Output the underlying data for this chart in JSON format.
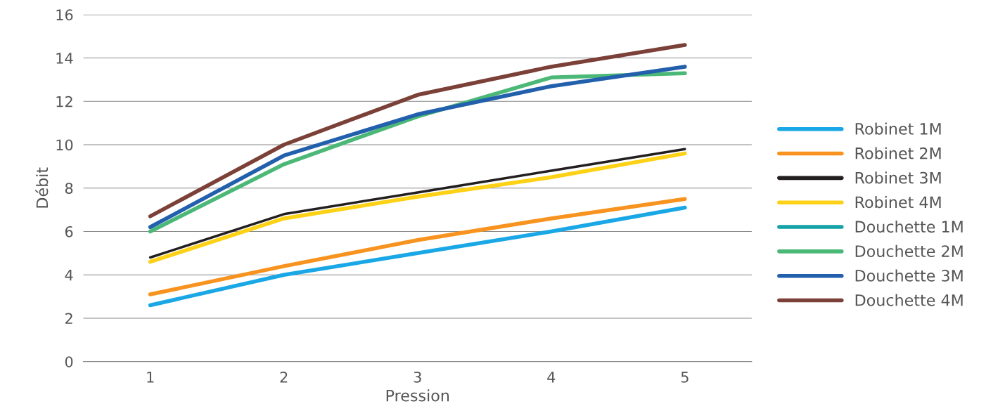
{
  "chart_data": {
    "type": "line",
    "xlabel": "Pression",
    "ylabel": "Débit",
    "x": [
      1,
      2,
      3,
      4,
      5
    ],
    "xlim": [
      0.5,
      5.5
    ],
    "xticks": [
      1,
      2,
      3,
      4,
      5
    ],
    "ylim": [
      0,
      16
    ],
    "yticks": [
      0,
      2,
      4,
      6,
      8,
      10,
      12,
      14,
      16
    ],
    "grid": "y",
    "legend": "right",
    "marker": "none",
    "line_style": "solid",
    "series": [
      {
        "name": "Robinet 1M",
        "color": "#1aa7e6",
        "values": [
          2.6,
          4.0,
          5.0,
          6.0,
          7.1
        ]
      },
      {
        "name": "Robinet 2M",
        "color": "#f7931e",
        "values": [
          3.1,
          4.4,
          5.6,
          6.6,
          7.5
        ]
      },
      {
        "name": "Robinet 3M",
        "color": "#231f20",
        "values": [
          4.8,
          6.8,
          7.8,
          8.8,
          9.8
        ]
      },
      {
        "name": "Robinet 4M",
        "color": "#fcd116",
        "values": [
          4.6,
          6.6,
          7.6,
          8.5,
          9.6
        ]
      },
      {
        "name": "Douchette 1M",
        "color": "#16a3a8",
        "values": [
          null,
          null,
          null,
          null,
          null
        ]
      },
      {
        "name": "Douchette 2M",
        "color": "#4cb877",
        "values": [
          6.0,
          9.1,
          11.3,
          13.1,
          13.3
        ]
      },
      {
        "name": "Douchette 3M",
        "color": "#2260ad",
        "values": [
          6.2,
          9.5,
          11.4,
          12.7,
          13.6
        ]
      },
      {
        "name": "Douchette 4M",
        "color": "#7b4138",
        "values": [
          6.7,
          10.0,
          12.3,
          13.6,
          14.6
        ]
      }
    ]
  }
}
